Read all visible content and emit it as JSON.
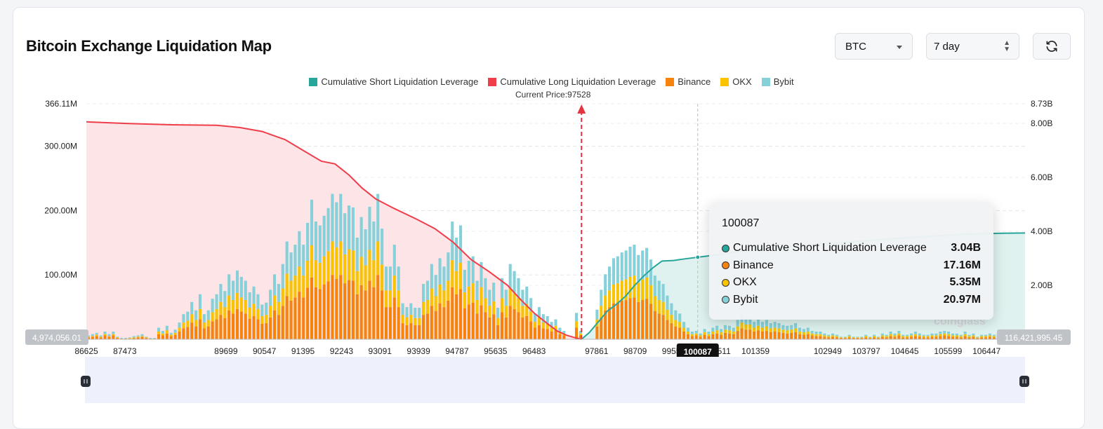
{
  "header": {
    "title": "Bitcoin Exchange Liquidation Map"
  },
  "controls": {
    "coin_selected": "BTC",
    "period_selected": "7 day",
    "refresh_icon": "refresh-icon"
  },
  "colors": {
    "short_cumulative": "#26a69a",
    "long_cumulative": "#ef3e4a",
    "binance": "#f7830f",
    "okx": "#f9c300",
    "bybit": "#86d1d9",
    "long_area": "#fde4e7",
    "short_area": "#dff2ef"
  },
  "legend": [
    {
      "label": "Cumulative Short Liquidation Leverage",
      "color": "#26a69a"
    },
    {
      "label": "Cumulative Long Liquidation Leverage",
      "color": "#ef3e4a"
    },
    {
      "label": "Binance",
      "color": "#f7830f"
    },
    {
      "label": "OKX",
      "color": "#f9c300"
    },
    {
      "label": "Bybit",
      "color": "#86d1d9"
    }
  ],
  "current_price_label": "Current Price:97528",
  "tooltip": {
    "price": "100087",
    "rows": [
      {
        "label": "Cumulative Short Liquidation Leverage",
        "value": "3.04B",
        "color": "#26a69a"
      },
      {
        "label": "Binance",
        "value": "17.16M",
        "color": "#f7830f"
      },
      {
        "label": "OKX",
        "value": "5.35M",
        "color": "#f9c300"
      },
      {
        "label": "Bybit",
        "value": "20.97M",
        "color": "#86d1d9"
      }
    ]
  },
  "watermark": "coinglass",
  "chart_data": {
    "type": "bar",
    "x_range": [
      86625,
      107295
    ],
    "current_price": 97528,
    "hover_price": 100087,
    "x_ticks": [
      "86625",
      "87473",
      "89699",
      "90547",
      "91395",
      "92243",
      "93091",
      "93939",
      "94787",
      "95635",
      "96483",
      "97861",
      "98709",
      "99557",
      "100087",
      "100511",
      "101359",
      "102949",
      "103797",
      "104645",
      "105599",
      "106447"
    ],
    "hover_tick_label": "100087",
    "x_edge_labels": {
      "left": "4,974,056.01",
      "right": "116,421,995.45"
    },
    "y_left": {
      "ticks": [
        "100.00M",
        "200.00M",
        "300.00M",
        "366.11M"
      ],
      "tick_values": [
        100,
        200,
        300,
        366.11
      ],
      "max": 366.11,
      "unit": "M"
    },
    "y_right": {
      "ticks": [
        "2.00B",
        "4.00B",
        "6.00B",
        "8.00B",
        "8.73B"
      ],
      "tick_values": [
        2,
        4,
        6,
        8,
        8.73
      ],
      "max": 8.73,
      "unit": "B"
    },
    "series": [
      {
        "name": "Binance",
        "color": "#f7830f",
        "values": [
          3,
          4,
          5,
          3,
          6,
          4,
          6,
          2,
          1,
          1,
          1,
          2,
          3,
          4,
          2,
          1,
          1,
          8,
          6,
          9,
          5,
          7,
          12,
          17,
          19,
          26,
          20,
          31,
          17,
          20,
          28,
          31,
          38,
          33,
          45,
          40,
          47,
          43,
          40,
          32,
          36,
          31,
          24,
          25,
          34,
          45,
          38,
          52,
          67,
          60,
          65,
          74,
          65,
          80,
          96,
          81,
          78,
          85,
          90,
          100,
          94,
          100,
          87,
          92,
          91,
          70,
          84,
          76,
          91,
          81,
          100,
          76,
          50,
          50,
          65,
          50,
          25,
          22,
          25,
          22,
          22,
          38,
          40,
          52,
          44,
          56,
          50,
          60,
          81,
          70,
          78,
          48,
          54,
          57,
          40,
          53,
          42,
          34,
          39,
          22,
          42,
          34,
          52,
          47,
          42,
          34,
          36,
          28,
          18,
          22,
          17,
          16,
          12,
          14,
          8,
          6,
          0,
          0,
          18,
          6,
          0,
          0,
          0,
          20,
          34,
          45,
          50,
          56,
          57,
          60,
          61,
          64,
          65,
          58,
          61,
          63,
          55,
          44,
          40,
          38,
          30,
          25,
          20,
          18,
          12,
          8,
          5,
          6,
          4,
          7,
          5,
          8,
          9,
          7,
          10,
          9,
          8,
          13,
          17,
          15,
          15,
          12,
          14,
          12,
          13,
          11,
          12,
          11,
          10,
          9,
          10,
          11,
          8,
          7,
          8,
          6,
          5,
          5,
          4,
          3,
          4,
          3,
          2,
          2,
          3,
          2,
          2,
          2,
          3,
          2,
          3,
          2,
          4,
          3,
          5,
          4,
          6,
          3,
          3,
          4,
          5,
          4,
          3,
          3,
          4,
          4,
          5,
          6,
          5,
          4,
          4,
          3,
          5,
          3,
          4,
          2,
          3,
          3,
          4,
          3,
          4,
          3,
          3,
          3,
          3,
          2,
          2
        ]
      },
      {
        "name": "OKX",
        "color": "#f9c300",
        "values": [
          1,
          1,
          2,
          1,
          2,
          1,
          2,
          1,
          0,
          0,
          1,
          1,
          1,
          1,
          1,
          0,
          0,
          4,
          3,
          5,
          2,
          3,
          6,
          9,
          10,
          13,
          10,
          16,
          9,
          10,
          14,
          16,
          20,
          17,
          23,
          21,
          25,
          22,
          21,
          17,
          19,
          16,
          12,
          13,
          18,
          23,
          20,
          27,
          35,
          31,
          34,
          39,
          34,
          42,
          50,
          42,
          41,
          44,
          47,
          52,
          49,
          52,
          45,
          48,
          47,
          36,
          44,
          39,
          48,
          42,
          52,
          40,
          26,
          26,
          34,
          26,
          13,
          12,
          13,
          11,
          11,
          20,
          21,
          27,
          23,
          29,
          26,
          31,
          42,
          36,
          41,
          25,
          28,
          30,
          21,
          28,
          22,
          18,
          20,
          11,
          22,
          18,
          27,
          24,
          22,
          18,
          19,
          15,
          9,
          12,
          9,
          8,
          6,
          7,
          4,
          3,
          0,
          0,
          10,
          3,
          0,
          0,
          0,
          11,
          18,
          23,
          26,
          29,
          30,
          31,
          32,
          33,
          34,
          30,
          32,
          33,
          29,
          23,
          21,
          20,
          16,
          13,
          10,
          9,
          6,
          4,
          3,
          3,
          2,
          4,
          3,
          4,
          5,
          4,
          5,
          5,
          4,
          7,
          9,
          8,
          8,
          6,
          7,
          6,
          7,
          6,
          6,
          6,
          5,
          5,
          5,
          6,
          4,
          4,
          4,
          3,
          3,
          3,
          2,
          2,
          2,
          2,
          1,
          1,
          2,
          1,
          1,
          1,
          2,
          1,
          2,
          1,
          2,
          2,
          3,
          2,
          3,
          2,
          2,
          2,
          3,
          2,
          2,
          2,
          2,
          2,
          3,
          3,
          3,
          2,
          2,
          2,
          3,
          2,
          2,
          1,
          2,
          2,
          2,
          2,
          2,
          2,
          2,
          2,
          2,
          1,
          1
        ]
      },
      {
        "name": "Bybit",
        "color": "#86d1d9",
        "values": [
          2,
          3,
          3,
          2,
          4,
          3,
          4,
          1,
          1,
          1,
          1,
          2,
          2,
          3,
          1,
          1,
          1,
          6,
          4,
          7,
          3,
          5,
          8,
          13,
          14,
          19,
          15,
          23,
          13,
          15,
          21,
          23,
          28,
          25,
          33,
          30,
          35,
          32,
          30,
          24,
          27,
          23,
          18,
          19,
          25,
          33,
          28,
          38,
          50,
          44,
          48,
          55,
          48,
          59,
          71,
          60,
          58,
          63,
          67,
          74,
          70,
          74,
          64,
          68,
          67,
          52,
          62,
          56,
          67,
          60,
          74,
          56,
          37,
          37,
          48,
          37,
          18,
          16,
          18,
          16,
          16,
          28,
          30,
          38,
          33,
          41,
          37,
          44,
          60,
          52,
          58,
          35,
          40,
          42,
          30,
          39,
          31,
          25,
          29,
          16,
          31,
          25,
          38,
          35,
          31,
          25,
          27,
          21,
          13,
          16,
          13,
          12,
          9,
          10,
          6,
          4,
          0,
          0,
          13,
          4,
          0,
          0,
          0,
          15,
          25,
          33,
          37,
          41,
          42,
          44,
          45,
          47,
          48,
          43,
          45,
          46,
          40,
          32,
          30,
          28,
          22,
          18,
          15,
          13,
          9,
          6,
          4,
          4,
          3,
          5,
          4,
          6,
          7,
          5,
          7,
          7,
          6,
          10,
          13,
          11,
          11,
          9,
          10,
          9,
          10,
          8,
          9,
          8,
          7,
          7,
          7,
          8,
          6,
          5,
          6,
          4,
          4,
          4,
          3,
          2,
          3,
          2,
          1,
          1,
          2,
          1,
          1,
          1,
          2,
          1,
          2,
          1,
          3,
          2,
          4,
          3,
          4,
          2,
          2,
          3,
          4,
          3,
          2,
          2,
          3,
          3,
          4,
          4,
          4,
          3,
          3,
          2,
          4,
          2,
          3,
          1,
          2,
          2,
          3,
          2,
          3,
          2,
          2,
          2,
          2,
          1,
          1
        ]
      }
    ],
    "cumulative_long": {
      "name": "Cumulative Long Liquidation Leverage",
      "color": "#ef3e4a",
      "x": [
        86625,
        87500,
        88500,
        89500,
        90000,
        90500,
        91000,
        91400,
        91800,
        92100,
        92400,
        92700,
        93000,
        93400,
        93900,
        94300,
        94700,
        95100,
        95500,
        95900,
        96200,
        96500,
        96800,
        97000,
        97200,
        97400,
        97528
      ],
      "y": [
        8.06,
        8.0,
        7.95,
        7.93,
        7.85,
        7.7,
        7.4,
        7.0,
        6.6,
        6.5,
        6.1,
        5.6,
        5.2,
        4.85,
        4.45,
        4.1,
        3.6,
        2.95,
        2.5,
        2.0,
        1.45,
        0.95,
        0.55,
        0.3,
        0.15,
        0.05,
        0
      ]
    },
    "cumulative_short": {
      "name": "Cumulative Short Liquidation Leverage",
      "color": "#26a69a",
      "x": [
        97528,
        97700,
        97900,
        98100,
        98300,
        98500,
        98700,
        98900,
        99100,
        99300,
        99557,
        99800,
        100087,
        100600,
        101200,
        102000,
        103000,
        104000,
        105000,
        106000,
        106800,
        107295
      ],
      "y": [
        0,
        0.25,
        0.65,
        1.05,
        1.3,
        1.6,
        2.0,
        2.35,
        2.65,
        2.9,
        2.92,
        2.98,
        3.04,
        3.15,
        3.3,
        3.42,
        3.55,
        3.68,
        3.8,
        3.9,
        3.93,
        3.94
      ]
    }
  }
}
